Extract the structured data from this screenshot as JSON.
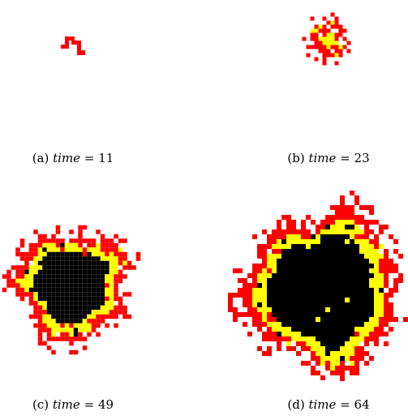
{
  "panels": [
    {
      "label": "(a)",
      "variable": "time",
      "relation": "=",
      "value": 11
    },
    {
      "label": "(b)",
      "variable": "time",
      "relation": "=",
      "value": 23
    },
    {
      "label": "(c)",
      "variable": "time",
      "relation": "=",
      "value": 49
    },
    {
      "label": "(d)",
      "variable": "time",
      "relation": "=",
      "value": 64
    }
  ]
}
